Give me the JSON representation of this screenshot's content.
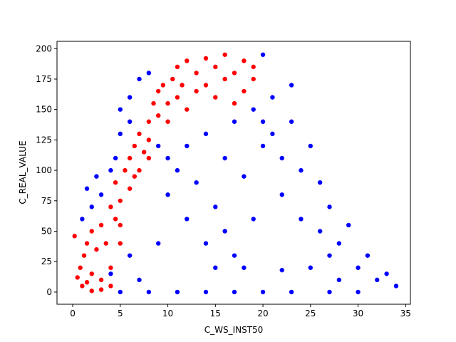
{
  "chart_data": {
    "type": "scatter",
    "xlabel": "C_WS_INST50",
    "ylabel": "C_REAL_VALUE",
    "xlim": [
      -1.65,
      35.5
    ],
    "ylim": [
      -10,
      206
    ],
    "xticks": [
      0,
      5,
      10,
      15,
      20,
      25,
      30,
      35
    ],
    "yticks": [
      0,
      25,
      50,
      75,
      100,
      125,
      150,
      175,
      200
    ],
    "series": [
      {
        "color": "#0000ff",
        "x": [
          1,
          1.5,
          2,
          2.5,
          3,
          4,
          4.5,
          5,
          5,
          6,
          6,
          7,
          8,
          9,
          10,
          10,
          11,
          12,
          12,
          13,
          14,
          14,
          15,
          15,
          16,
          16,
          17,
          17,
          18,
          19,
          19,
          20,
          20,
          20,
          21,
          21,
          22,
          22,
          23,
          23,
          24,
          24,
          25,
          25,
          26,
          26,
          27,
          27,
          28,
          28,
          29,
          30,
          31,
          32,
          33,
          34,
          5,
          8,
          11,
          14,
          17,
          20,
          23,
          27,
          30,
          6,
          7,
          9,
          4,
          22,
          18
        ],
        "values": [
          60,
          85,
          70,
          95,
          80,
          100,
          110,
          130,
          150,
          160,
          140,
          175,
          180,
          120,
          110,
          80,
          100,
          120,
          60,
          90,
          130,
          40,
          70,
          20,
          50,
          110,
          140,
          30,
          95,
          60,
          150,
          140,
          195,
          120,
          160,
          130,
          110,
          80,
          140,
          170,
          100,
          60,
          120,
          20,
          90,
          50,
          70,
          30,
          40,
          10,
          55,
          20,
          30,
          10,
          15,
          5,
          0,
          0,
          0,
          0,
          0,
          0,
          0,
          0,
          0,
          30,
          10,
          40,
          15,
          18,
          20
        ]
      },
      {
        "color": "#ff0000",
        "x": [
          0.2,
          0.5,
          0.8,
          1,
          1.2,
          1.5,
          2,
          2,
          2.5,
          3,
          3,
          3.5,
          4,
          4,
          4.5,
          4.5,
          5,
          5,
          5.5,
          6,
          6,
          6.5,
          7,
          7,
          7.5,
          8,
          8,
          8.5,
          9,
          9,
          9.5,
          10,
          10,
          10.5,
          11,
          11,
          11.5,
          12,
          12,
          13,
          13,
          14,
          14,
          15,
          15,
          16,
          16,
          17,
          17,
          18,
          18,
          19,
          19,
          3,
          2,
          4,
          1.5,
          5,
          6.5,
          8
        ],
        "values": [
          46,
          12,
          20,
          5,
          30,
          40,
          15,
          50,
          35,
          10,
          55,
          40,
          70,
          20,
          60,
          90,
          75,
          40,
          100,
          85,
          110,
          120,
          100,
          130,
          115,
          140,
          125,
          155,
          145,
          165,
          170,
          155,
          140,
          175,
          160,
          185,
          170,
          190,
          150,
          180,
          165,
          192,
          170,
          185,
          160,
          195,
          175,
          180,
          155,
          190,
          165,
          175,
          185,
          2,
          1,
          5,
          8,
          55,
          95,
          110
        ]
      }
    ]
  }
}
